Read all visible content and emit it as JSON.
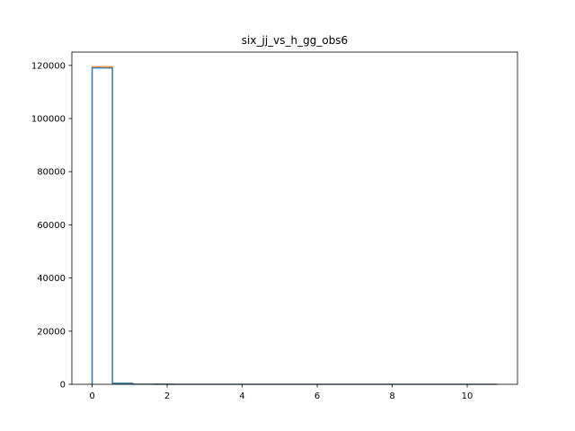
{
  "chart_data": {
    "type": "histogram",
    "title": "six_jj_vs_h_gg_obs6",
    "xlabel": "",
    "ylabel": "",
    "xlim": [
      -0.54,
      11.34
    ],
    "ylim": [
      0,
      125000
    ],
    "x_ticks": [
      0,
      2,
      4,
      6,
      8,
      10
    ],
    "x_tick_labels": [
      "0",
      "2",
      "4",
      "6",
      "8",
      "10"
    ],
    "y_ticks": [
      0,
      20000,
      40000,
      60000,
      80000,
      100000,
      120000
    ],
    "y_tick_labels": [
      "0",
      "20000",
      "40000",
      "60000",
      "80000",
      "100000",
      "120000"
    ],
    "grid": false,
    "bin_edges": [
      0.0,
      0.54,
      1.08,
      1.62,
      2.16,
      2.7,
      3.24,
      3.78,
      4.32,
      4.86,
      5.4,
      5.94,
      6.48,
      7.02,
      7.56,
      8.1,
      8.64,
      9.18,
      9.72,
      10.26,
      10.8
    ],
    "series": [
      {
        "color": "#ff7f0e",
        "values": [
          119500,
          350,
          40,
          15,
          8,
          5,
          3,
          2,
          2,
          1,
          1,
          1,
          1,
          0,
          0,
          0,
          0,
          0,
          0,
          1
        ]
      },
      {
        "color": "#1f77b4",
        "values": [
          119000,
          350,
          40,
          15,
          8,
          5,
          3,
          2,
          2,
          1,
          1,
          1,
          1,
          0,
          0,
          0,
          0,
          0,
          0,
          1
        ]
      }
    ]
  }
}
